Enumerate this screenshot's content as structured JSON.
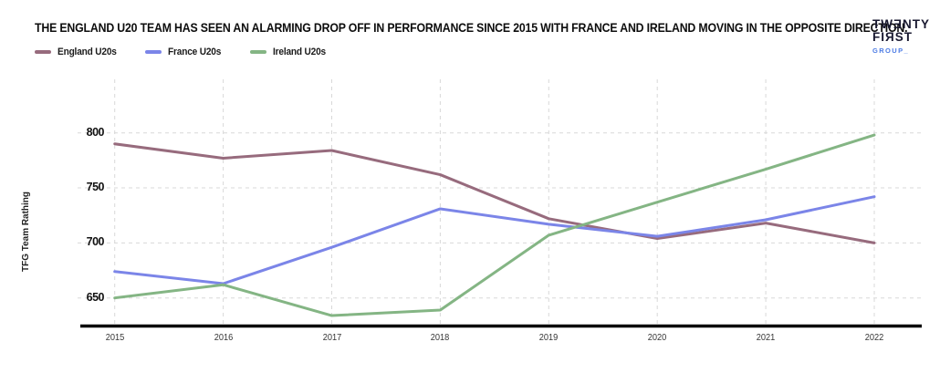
{
  "header": {
    "title": "THE ENGLAND U20 TEAM HAS SEEN AN ALARMING DROP OFF IN PERFORMANCE SINCE 2015 WITH FRANCE AND IRELAND MOVING IN THE OPPOSITE DIRECTION.",
    "logo": {
      "line1": "TWƎNTY",
      "line2": "FIЯST",
      "line3": "GROUP_",
      "text_color": "#191930",
      "accent_color": "#4d7ce5"
    }
  },
  "chart_data": {
    "type": "line",
    "x": [
      2015,
      2016,
      2017,
      2018,
      2019,
      2020,
      2021,
      2022
    ],
    "series": [
      {
        "name": "England U20s",
        "color": "#976b7d",
        "values": [
          790,
          777,
          784,
          762,
          722,
          704,
          718,
          700
        ]
      },
      {
        "name": "France U20s",
        "color": "#7b85e8",
        "values": [
          674,
          663,
          696,
          731,
          717,
          706,
          721,
          742
        ]
      },
      {
        "name": "Ireland U20s",
        "color": "#84b584",
        "values": [
          650,
          662,
          634,
          639,
          707,
          737,
          767,
          798
        ]
      }
    ],
    "title": "THE ENGLAND U20 TEAM HAS SEEN AN ALARMING DROP OFF IN PERFORMANCE SINCE 2015 WITH FRANCE AND IRELAND MOVING IN THE OPPOSITE DIRECTION.",
    "xlabel": "",
    "ylabel": "TFG Team Rathing",
    "yticks": [
      650,
      700,
      750,
      800
    ],
    "ylim": [
      622,
      812
    ],
    "grid": true,
    "gridline_color": "#d8d8d8",
    "axis_line_color": "#000000",
    "legend_position": "top-left"
  }
}
